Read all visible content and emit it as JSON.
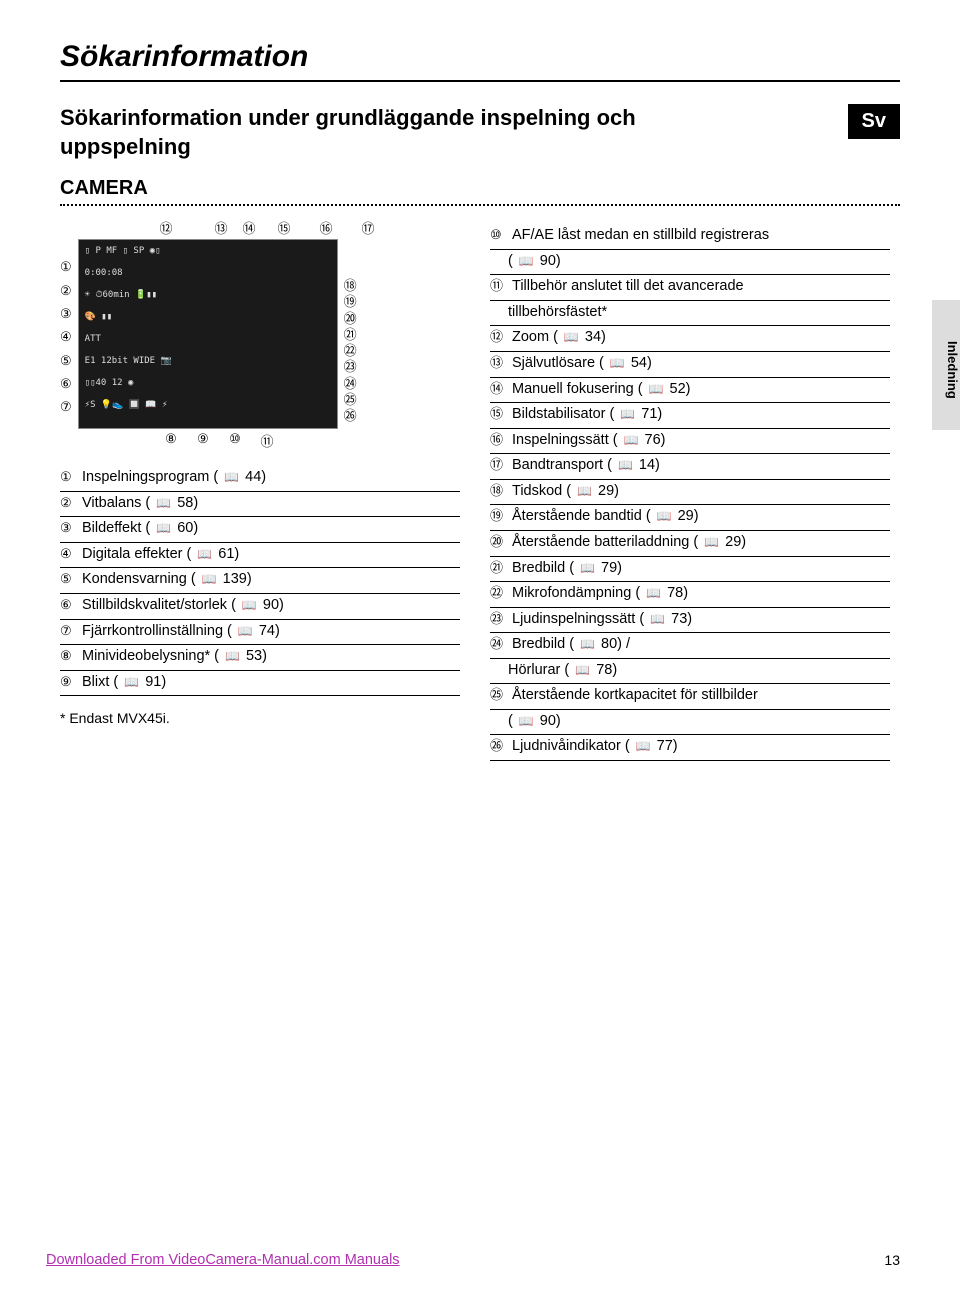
{
  "page": {
    "title": "Sökarinformation",
    "section_title": "Sökarinformation under grundläggande inspelning och uppspelning",
    "lang_badge": "Sv",
    "camera_label": "CAMERA",
    "side_tab": "Inledning",
    "footnote": "* Endast MVX45i.",
    "footer_link": "Downloaded From VideoCamera-Manual.com Manuals",
    "page_number": "13"
  },
  "circled": [
    "①",
    "②",
    "③",
    "④",
    "⑤",
    "⑥",
    "⑦",
    "⑧",
    "⑨",
    "⑩",
    "⑪",
    "⑫",
    "⑬",
    "⑭",
    "⑮",
    "⑯",
    "⑰",
    "⑱",
    "⑲",
    "⑳",
    "㉑",
    "㉒",
    "㉓",
    "㉔",
    "㉕",
    "㉖"
  ],
  "book_glyph": "📖",
  "diagram": {
    "left_nums_idx": [
      1,
      2,
      3,
      4,
      5,
      6,
      7
    ],
    "top_nums": [
      {
        "idx": 12
      },
      {
        "idx": 13,
        "tight": true
      },
      {
        "idx": 14,
        "tight": true
      },
      {
        "idx": 15
      },
      {
        "idx": 16
      },
      {
        "idx": 17
      }
    ],
    "right_nums_idx": [
      18,
      19,
      20,
      21,
      22,
      23,
      24,
      25,
      26
    ],
    "bottom_nums_idx": [
      8,
      9,
      10,
      11
    ],
    "screenshot_lines": [
      "▯ P      MF ▯ SP   ◉▯",
      "            0:00:08",
      "☀           ⏱60min  🔋▮▮",
      "🎨                   ▮▮",
      "                     ATT",
      "E1          12bit WIDE 📷",
      "            ▯▯40   12   ◉",
      "⚡S 💡👟   🔲 📖 ⚡"
    ]
  },
  "left_list": [
    {
      "n": 1,
      "text": "Inspelningsprogram (",
      "pg": "44)"
    },
    {
      "n": 2,
      "text": "Vitbalans (",
      "pg": "58)"
    },
    {
      "n": 3,
      "text": "Bildeffekt (",
      "pg": "60)"
    },
    {
      "n": 4,
      "text": "Digitala effekter (",
      "pg": "61)"
    },
    {
      "n": 5,
      "text": "Kondensvarning (",
      "pg": "139)"
    },
    {
      "n": 6,
      "text": "Stillbildskvalitet/storlek (",
      "pg": "90)"
    },
    {
      "n": 7,
      "text": "Fjärrkontrollinställning (",
      "pg": "74)"
    },
    {
      "n": 8,
      "text": "Minivideobelysning* (",
      "pg": "53)"
    },
    {
      "n": 9,
      "text": "Blixt (",
      "pg": "91)"
    }
  ],
  "right_list": [
    {
      "n": 10,
      "text": "AF/AE låst medan en stillbild registreras"
    },
    {
      "cont": true,
      "text": "(",
      "pg": "90)"
    },
    {
      "n": 11,
      "text": "Tillbehör anslutet till det avancerade"
    },
    {
      "cont": true,
      "text": "tillbehörsfästet*"
    },
    {
      "n": 12,
      "text": "Zoom (",
      "pg": "34)"
    },
    {
      "n": 13,
      "text": "Självutlösare (",
      "pg": "54)"
    },
    {
      "n": 14,
      "text": "Manuell fokusering (",
      "pg": "52)"
    },
    {
      "n": 15,
      "text": "Bildstabilisator (",
      "pg": "71)"
    },
    {
      "n": 16,
      "text": "Inspelningssätt (",
      "pg": "76)"
    },
    {
      "n": 17,
      "text": "Bandtransport (",
      "pg": "14)"
    },
    {
      "n": 18,
      "text": "Tidskod (",
      "pg": "29)"
    },
    {
      "n": 19,
      "text": "Återstående bandtid (",
      "pg": "29)"
    },
    {
      "n": 20,
      "text": "Återstående batteriladdning (",
      "pg": "29)"
    },
    {
      "n": 21,
      "text": "Bredbild (",
      "pg": "79)"
    },
    {
      "n": 22,
      "text": "Mikrofondämpning (",
      "pg": "78)"
    },
    {
      "n": 23,
      "text": "Ljudinspelningssätt (",
      "pg": "73)"
    },
    {
      "n": 24,
      "text": "Bredbild (",
      "pg": "80) /"
    },
    {
      "cont": true,
      "text": "Hörlurar (",
      "pg": "78)"
    },
    {
      "n": 25,
      "text": "Återstående kortkapacitet för stillbilder"
    },
    {
      "cont": true,
      "text": "(",
      "pg": "90)"
    },
    {
      "n": 26,
      "text": "Ljudnivåindikator (",
      "pg": "77)"
    }
  ]
}
